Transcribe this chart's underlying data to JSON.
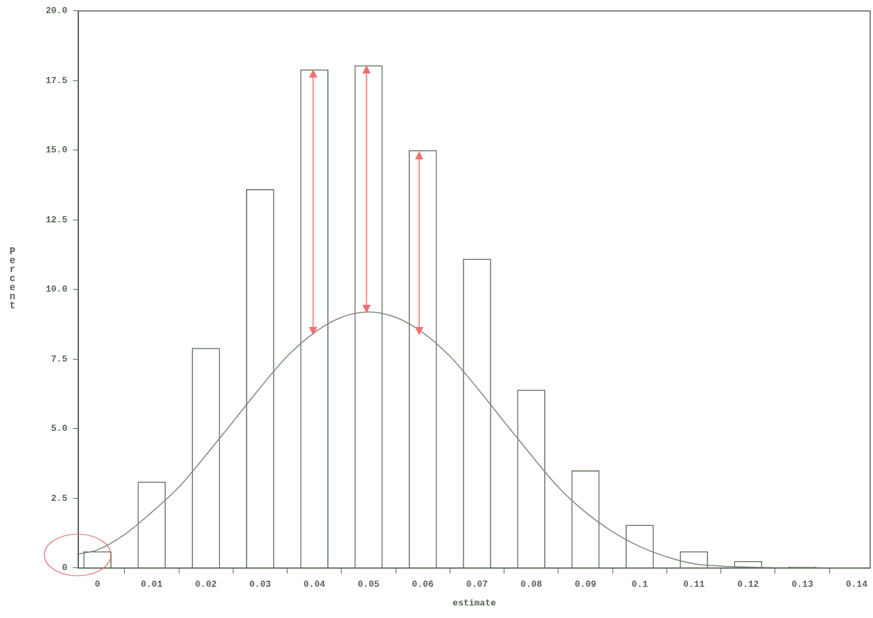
{
  "chart_data": {
    "type": "bar",
    "xlabel": "estimate",
    "ylabel": "Percent",
    "series": [
      {
        "color": "#5a6e5a",
        "x": [
          0,
          0.01,
          0.02,
          0.03,
          0.04,
          0.05,
          0.06,
          0.07,
          0.08,
          0.09,
          0.1,
          0.11,
          0.12,
          0.13
        ],
        "values": [
          0.6,
          3.1,
          7.9,
          13.6,
          17.9,
          18.05,
          15.0,
          11.1,
          6.4,
          3.5,
          1.55,
          0.6,
          0.25,
          0.05
        ]
      },
      {
        "type": "line",
        "color": "#7a8a7a",
        "x": [
          -0.0035,
          0,
          0.005,
          0.01,
          0.015,
          0.02,
          0.025,
          0.03,
          0.035,
          0.04,
          0.045,
          0.05,
          0.055,
          0.06,
          0.065,
          0.07,
          0.075,
          0.08,
          0.085,
          0.09,
          0.095,
          0.1,
          0.105,
          0.11,
          0.115,
          0.12,
          0.125,
          0.13
        ],
        "values": [
          0.5,
          0.65,
          1.2,
          2.0,
          2.9,
          4.05,
          5.25,
          6.47,
          7.6,
          8.45,
          9.0,
          9.19,
          9.0,
          8.45,
          7.6,
          6.47,
          5.25,
          4.05,
          2.9,
          2.0,
          1.3,
          0.77,
          0.4,
          0.15,
          0.07,
          0.03,
          0.01,
          0
        ]
      }
    ],
    "xlim": [
      -0.0035,
      0.1425
    ],
    "xticks": [
      0,
      0.01,
      0.02,
      0.03,
      0.04,
      0.05,
      0.06,
      0.07,
      0.08,
      0.09,
      0.1,
      0.11,
      0.12,
      0.13,
      0.14
    ],
    "ylim": [
      0,
      20
    ],
    "yticks": [
      0,
      2.5,
      {
        "value": 5,
        "label": "5.0"
      },
      7.5,
      {
        "value": 10,
        "label": "10.0"
      },
      12.5,
      {
        "value": 15,
        "label": "15.0"
      },
      17.5,
      {
        "value": 20,
        "label": "20.0"
      }
    ],
    "grid": false,
    "legend": false,
    "marker": "none"
  }
}
